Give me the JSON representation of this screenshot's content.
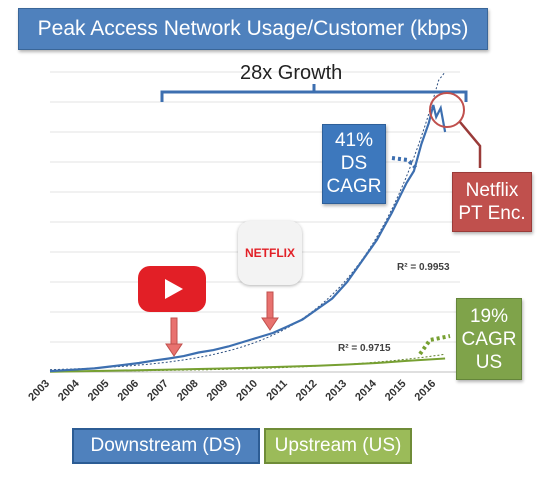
{
  "chart_data": {
    "type": "line",
    "title": "Peak Access Network Usage/Customer (kbps)",
    "xlim": [
      2003,
      2016.8
    ],
    "ylim": [
      0,
      100
    ],
    "x_ticks": [
      "2003",
      "2004",
      "2005",
      "2006",
      "2007",
      "2008",
      "2009",
      "2010",
      "2011",
      "2012",
      "2013",
      "2014",
      "2015",
      "2016"
    ],
    "grid": true,
    "series": [
      {
        "name": "Downstream (DS)",
        "color": "#3d6fb0",
        "x": [
          2003.0,
          2003.5,
          2004.0,
          2004.5,
          2005.0,
          2005.5,
          2006.0,
          2006.5,
          2007.0,
          2007.5,
          2008.0,
          2008.5,
          2009.0,
          2009.5,
          2010.0,
          2010.5,
          2011.0,
          2011.5,
          2012.0,
          2012.5,
          2013.0,
          2013.5,
          2014.0,
          2014.5,
          2015.0,
          2015.25,
          2015.5,
          2015.75,
          2015.9,
          2016.0,
          2016.15,
          2016.3
        ],
        "y": [
          0.3,
          0.6,
          0.9,
          1.2,
          1.8,
          2.4,
          3.0,
          3.8,
          4.5,
          5.3,
          6.5,
          7.3,
          8.5,
          10.0,
          11.5,
          13.0,
          15.2,
          17.5,
          21.0,
          24.5,
          30.0,
          37.0,
          44.0,
          53.0,
          63.0,
          67.0,
          76.0,
          83.0,
          89.0,
          85.0,
          88.0,
          80.0
        ]
      },
      {
        "name": "Upstream (US)",
        "color": "#77a032",
        "x": [
          2003.0,
          2005.0,
          2007.0,
          2009.0,
          2010.0,
          2011.0,
          2012.0,
          2013.0,
          2014.0,
          2015.0,
          2016.3
        ],
        "y": [
          0.1,
          0.4,
          0.8,
          1.2,
          1.5,
          1.8,
          2.1,
          2.5,
          3.0,
          3.7,
          4.5
        ]
      }
    ],
    "trendlines": [
      {
        "series": "Downstream (DS)",
        "r2_label": "R² = 0.9953"
      },
      {
        "series": "Upstream (US)",
        "r2_label": "R² = 0.9715"
      }
    ],
    "annotations": {
      "growth": "28x Growth",
      "ds_cagr": [
        "41%",
        "DS",
        "CAGR"
      ],
      "netflix_pt": [
        "Netflix",
        "PT Enc."
      ],
      "us_cagr": [
        "19%",
        "CAGR",
        "US"
      ],
      "netflix_logo": "NETFLIX"
    }
  },
  "legend": {
    "ds": "Downstream (DS)",
    "us": "Upstream (US)"
  },
  "icons": [
    "youtube-icon",
    "netflix-icon"
  ],
  "colors": {
    "title_bg": "#4f81bd",
    "ds": "#3d6fb0",
    "us": "#77a032",
    "netflix_red": "#c0504d"
  }
}
